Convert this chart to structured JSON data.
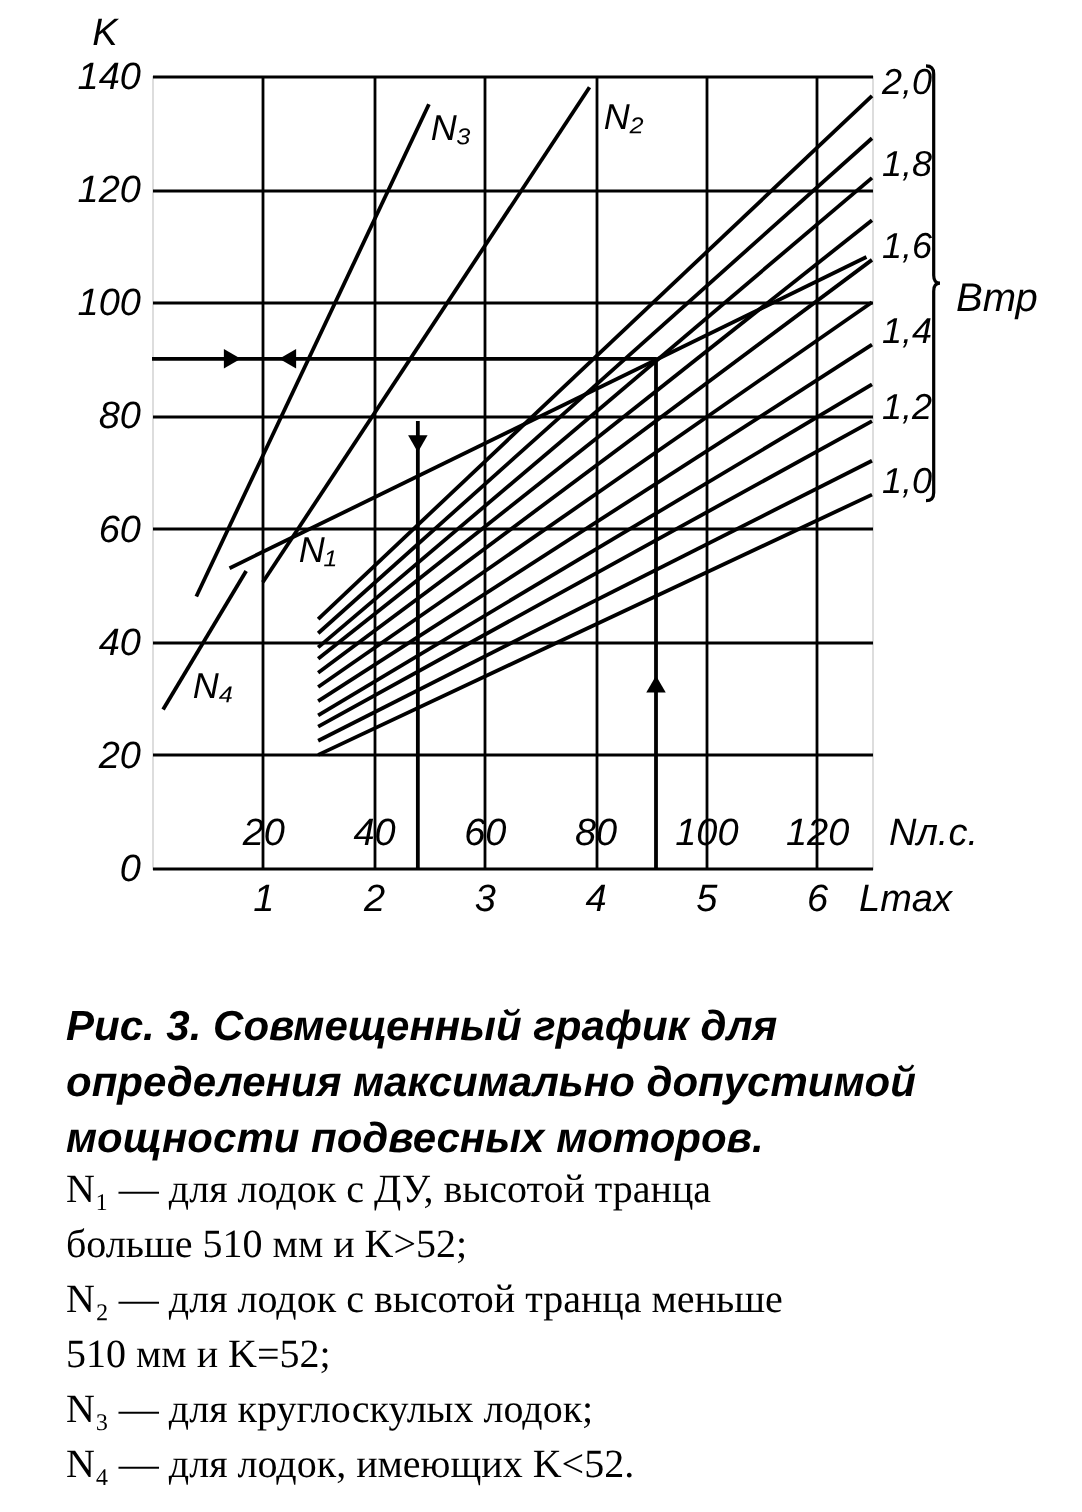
{
  "chart_data": {
    "type": "line",
    "title": "Рис. 3. Совмещенный график для определения максимально допустимой мощности подвесных моторов.",
    "ylabel": "K",
    "xlabel": "Nл.с.",
    "x2label": "Lmax",
    "legend_title": "Bтр",
    "annotations": [
      "N₁ — для лодок с ДУ, высотой транца больше 510 мм и K>52;",
      "N₂ — для лодок с высотой транца меньше 510 мм и K=52;",
      "N₃ — для круглоскулых лодок;",
      "N₄ — для лодок, имеющих K<52."
    ],
    "xlim": [
      0,
      130
    ],
    "xticks": [
      20,
      40,
      60,
      80,
      100,
      120
    ],
    "x2lim": [
      0,
      6.5
    ],
    "x2ticks": [
      1,
      2,
      3,
      4,
      5,
      6
    ],
    "ylim": [
      0,
      140
    ],
    "yticks": [
      0,
      20,
      40,
      60,
      80,
      100,
      120,
      140
    ],
    "grid": true,
    "series": [
      {
        "name": "N₁",
        "color": "#000000",
        "x": [
          14,
          129
        ],
        "values": [
          53,
          108
        ]
      },
      {
        "name": "N₂",
        "color": "#000000",
        "x": [
          20,
          79
        ],
        "values": [
          50.5,
          138
        ]
      },
      {
        "name": "N₃",
        "color": "#000000",
        "x": [
          8,
          50
        ],
        "values": [
          48,
          135
        ]
      },
      {
        "name": "N₄",
        "color": "#000000",
        "x": [
          2,
          17
        ],
        "values": [
          28,
          52.5
        ]
      },
      {
        "name": "1,0",
        "color": "#000000",
        "x": [
          30,
          130
        ],
        "values": [
          20,
          66
        ]
      },
      {
        "color": "#000000",
        "x": [
          30,
          130
        ],
        "values": [
          22.5,
          72
        ]
      },
      {
        "name": "1,2",
        "color": "#000000",
        "x": [
          30,
          130
        ],
        "values": [
          25,
          79
        ]
      },
      {
        "color": "#000000",
        "x": [
          30,
          130
        ],
        "values": [
          27,
          85.5
        ]
      },
      {
        "name": "1,4",
        "color": "#000000",
        "x": [
          30,
          130
        ],
        "values": [
          29.5,
          92.5
        ]
      },
      {
        "color": "#000000",
        "x": [
          30,
          130
        ],
        "values": [
          32,
          100
        ]
      },
      {
        "name": "1,6",
        "color": "#000000",
        "x": [
          30,
          130
        ],
        "values": [
          34.5,
          107.5
        ]
      },
      {
        "color": "#000000",
        "x": [
          30,
          130
        ],
        "values": [
          37,
          114.5
        ]
      },
      {
        "name": "1,8",
        "color": "#000000",
        "x": [
          30,
          130
        ],
        "values": [
          39,
          122
        ]
      },
      {
        "color": "#000000",
        "x": [
          30,
          130
        ],
        "values": [
          41.5,
          129
        ]
      },
      {
        "name": "2,0",
        "color": "#000000",
        "x": [
          30,
          130
        ],
        "values": [
          44,
          136.5
        ]
      },
      {
        "color": "#000000",
        "x": [
          91,
          91,
          0
        ],
        "values": [
          0,
          90,
          90
        ]
      },
      {
        "color": "#000000",
        "x": [
          48,
          48
        ],
        "values": [
          79,
          0
        ]
      },
      {
        "type": "scatter",
        "color": "#000000",
        "marker": "triangle",
        "x": [
          91,
          14.5,
          24.5,
          48
        ],
        "values": [
          32.5,
          90,
          90,
          75
        ]
      }
    ]
  }
}
